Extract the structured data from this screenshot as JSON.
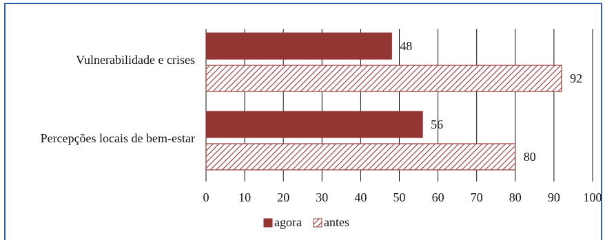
{
  "chart_data": {
    "type": "bar",
    "orientation": "horizontal",
    "categories": [
      "Vulnerabilidade e crises",
      "Percepções locais de bem-estar"
    ],
    "series": [
      {
        "name": "agora",
        "values": [
          48,
          56
        ],
        "color": "#943634",
        "pattern": "solid"
      },
      {
        "name": "antes",
        "values": [
          92,
          80
        ],
        "color": "#943634",
        "pattern": "diagonal-hatch"
      }
    ],
    "xlim": [
      0,
      100
    ],
    "xticks": [
      0,
      10,
      20,
      30,
      40,
      50,
      60,
      70,
      80,
      90,
      100
    ],
    "grid": "vertical",
    "legend_position": "bottom",
    "data_labels": true
  }
}
